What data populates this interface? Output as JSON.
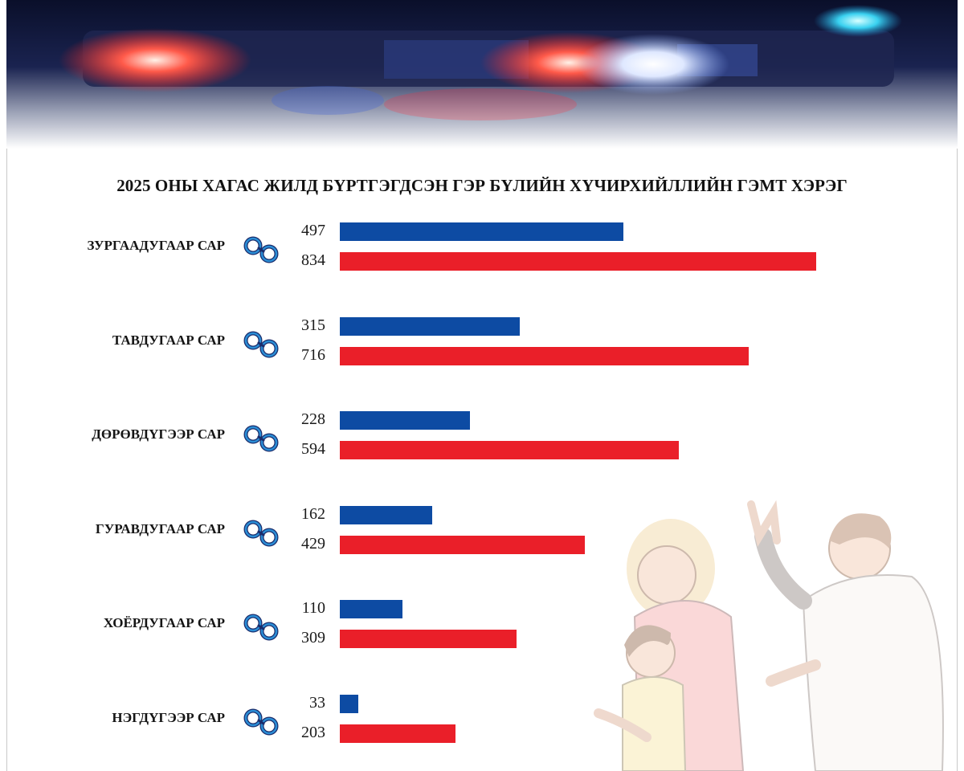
{
  "colors": {
    "blue": "#0d4ba3",
    "red": "#ea1f29",
    "icon_fill": "#2b8ed6",
    "icon_stroke": "#1a2c6b"
  },
  "chart_data": {
    "type": "bar",
    "orientation": "horizontal",
    "title": "2025 ОНЫ ХАГАС ЖИЛД БҮРТГЭГДСЭН ГЭР БҮЛИЙН ХҮЧИРХИЙЛЛИЙН ГЭМТ ХЭРЭГ",
    "categories": [
      "ЗУРГААДУГААР САР",
      "ТАВДУГААР САР",
      "ДӨРӨВДҮГЭЭР САР",
      "ГУРАВДУГААР САР",
      "ХОЁРДУГААР САР",
      "НЭГДҮГЭЭР САР"
    ],
    "series": [
      {
        "values": [
          497,
          315,
          228,
          162,
          110,
          33
        ],
        "color": "#0d4ba3"
      },
      {
        "values": [
          834,
          716,
          594,
          429,
          309,
          203
        ],
        "color": "#ea1f29"
      }
    ],
    "value_labels": {
      "blue": [
        "497",
        "315",
        "228",
        "162",
        "110",
        "33"
      ],
      "red": [
        "834",
        "716",
        "594",
        "429",
        "309",
        "203"
      ]
    },
    "category_icon": "handcuffs-icon",
    "grid": false,
    "legend": "none"
  },
  "banner_image": "police-lights",
  "illustration": "family-violence-scene"
}
